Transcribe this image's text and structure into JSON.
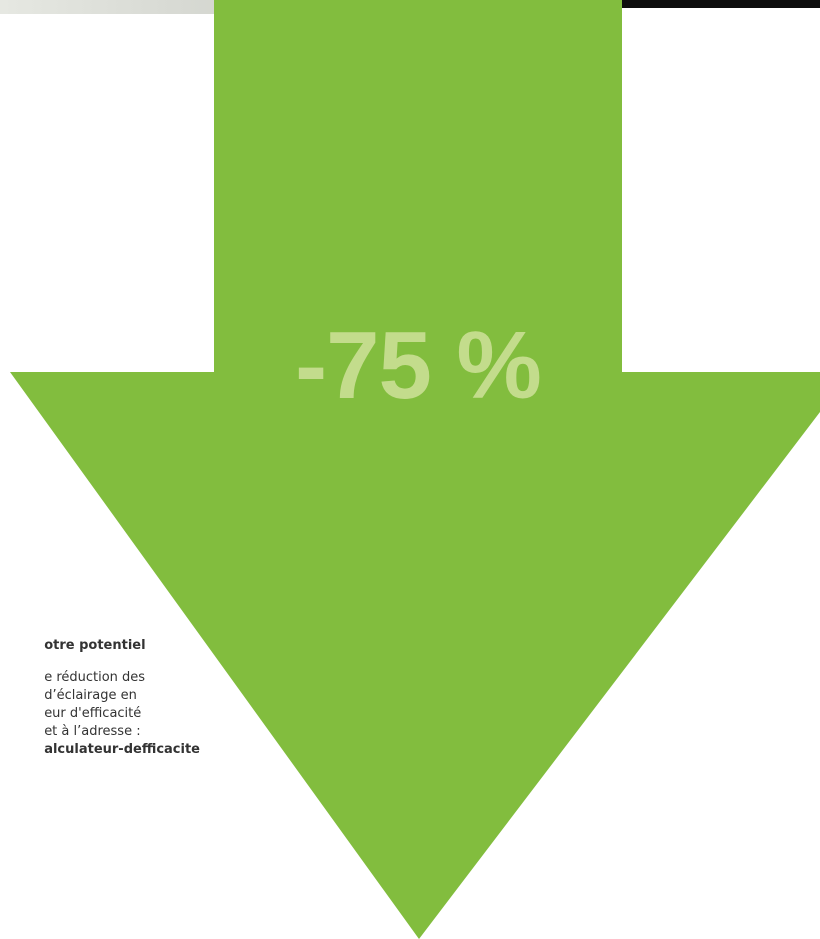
{
  "colors": {
    "arrow": "#82bd3e",
    "percent_text": "#c3dc8c",
    "body_text": "#333333"
  },
  "arrow": {
    "label": "-75 %"
  },
  "side_text": {
    "heading": "otre potentiel",
    "lines": [
      "e réduction des",
      "d’éclairage en",
      "eur d'efficacité",
      "et à l’adresse :"
    ],
    "link": "alculateur-defficacite"
  }
}
